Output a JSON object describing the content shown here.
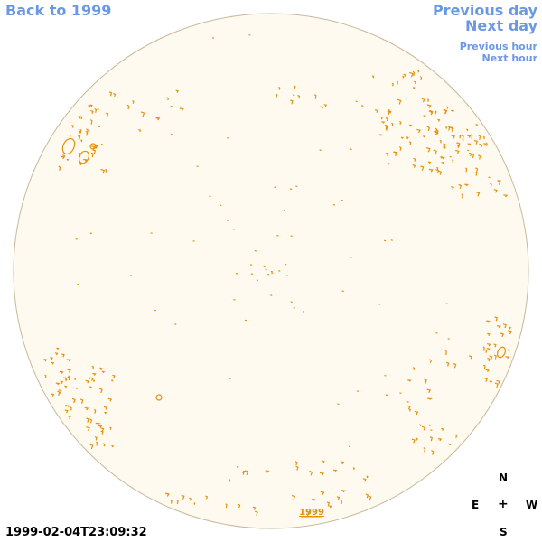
{
  "nav": {
    "back_label": "Back to 1999",
    "prev_day_label": "Previous day",
    "next_day_label": "Next day",
    "prev_hour_label": "Previous hour",
    "next_hour_label": "Next hour"
  },
  "disk": {
    "year_label": "1999",
    "fill_color": "#fffaf0",
    "rim_color": "#c8b89a",
    "contour_color": "#e8900a"
  },
  "footer": {
    "timestamp": "1999-02-04T23:09:32"
  },
  "compass": {
    "north": "N",
    "east": "E",
    "center": "+",
    "west": "W",
    "south": "S"
  },
  "colors": {
    "link": "#6b98e4",
    "text": "#000000"
  }
}
